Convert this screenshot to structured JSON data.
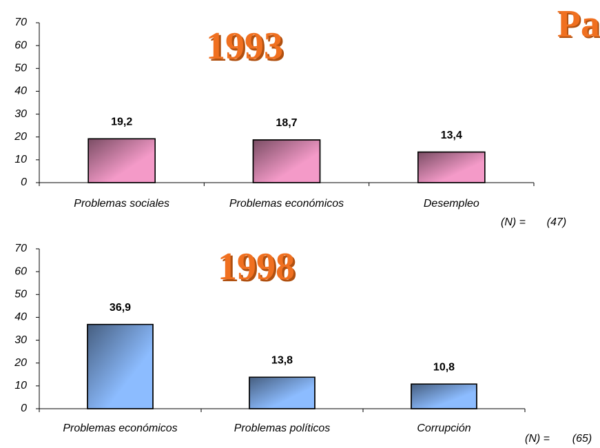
{
  "cut_title": "Pa",
  "chart_data": [
    {
      "type": "bar",
      "title": "1993",
      "categories": [
        "Problemas sociales",
        "Problemas económicos",
        "Desempleo"
      ],
      "values": [
        19.2,
        18.7,
        13.4
      ],
      "value_labels": [
        "19,2",
        "18,7",
        "13,4"
      ],
      "color": "#f49ac8",
      "ylim": [
        0,
        70
      ],
      "yticks": [
        0,
        10,
        20,
        30,
        40,
        50,
        60,
        70
      ],
      "annotation": [
        "(N) =",
        "(47)"
      ]
    },
    {
      "type": "bar",
      "title": "1998",
      "categories": [
        "Problemas económicos",
        "Problemas políticos",
        "Corrupción"
      ],
      "values": [
        36.9,
        13.8,
        10.8
      ],
      "value_labels": [
        "36,9",
        "13,8",
        "10,8"
      ],
      "color": "#8cbcff",
      "ylim": [
        0,
        70
      ],
      "yticks": [
        0,
        10,
        20,
        30,
        40,
        50,
        60,
        70
      ],
      "annotation": [
        "(N) =",
        "(65)"
      ]
    }
  ]
}
